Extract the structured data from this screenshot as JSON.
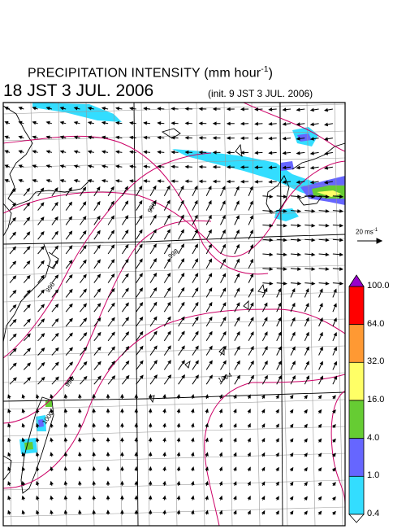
{
  "title": {
    "main": "PRECIPITATION INTENSITY (mm hour",
    "unit_exp": "-1",
    "close": ")"
  },
  "valid_time": "18 JST 3 JUL. 2006",
  "init_time": "(init. 9 JST 3 JUL. 2006)",
  "wind_scale": {
    "value": "20 ms",
    "exp": "-1"
  },
  "colorbar": {
    "levels": [
      "100.0",
      "64.0",
      "32.0",
      "16.0",
      "4.0",
      "1.0",
      "0.4"
    ],
    "colors": [
      "#ff0000",
      "#ff9933",
      "#ffff66",
      "#66cc33",
      "#6666ff",
      "#33ddff"
    ],
    "over_color": "#9900cc"
  },
  "isobars": [
    {
      "label": "996"
    },
    {
      "label": "998"
    },
    {
      "label": "996"
    },
    {
      "label": "998"
    },
    {
      "label": "1004"
    },
    {
      "label": "1000"
    }
  ],
  "colors": {
    "isobar": "#cc0066",
    "coast": "#000000",
    "grid": "#999999",
    "arrow": "#000000"
  }
}
